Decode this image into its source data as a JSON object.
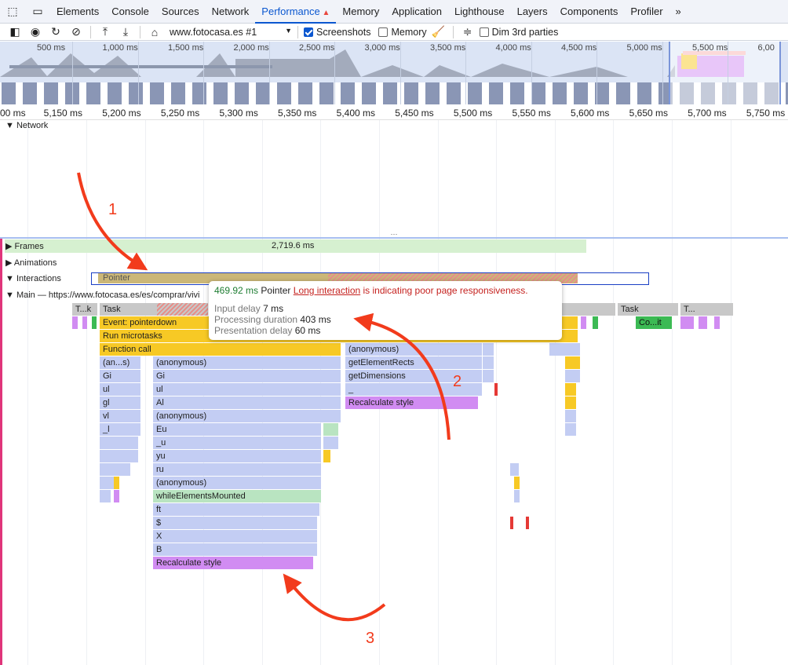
{
  "tabs": {
    "items": [
      "Elements",
      "Console",
      "Sources",
      "Network",
      "Performance",
      "Memory",
      "Application",
      "Lighthouse",
      "Layers",
      "Components",
      "Profiler"
    ],
    "active": "Performance",
    "more": "»"
  },
  "toolbar": {
    "recording": "www.fotocasa.es #1",
    "screenshots": "Screenshots",
    "screenshots_checked": true,
    "memory": "Memory",
    "memory_checked": false,
    "dim": "Dim 3rd parties",
    "dim_checked": false
  },
  "overview": {
    "ticks": [
      "500 ms",
      "1,000 ms",
      "1,500 ms",
      "2,000 ms",
      "2,500 ms",
      "3,000 ms",
      "3,500 ms",
      "4,000 ms",
      "4,500 ms",
      "5,000 ms",
      "5,500 ms",
      "6,00"
    ]
  },
  "ruler": {
    "ticks": [
      "00 ms",
      "5,150 ms",
      "5,200 ms",
      "5,250 ms",
      "5,300 ms",
      "5,350 ms",
      "5,400 ms",
      "5,450 ms",
      "5,500 ms",
      "5,550 ms",
      "5,600 ms",
      "5,650 ms",
      "5,700 ms",
      "5,750 ms"
    ]
  },
  "tracks": {
    "network": "Network",
    "frames": "Frames",
    "frames_value": "2,719.6 ms",
    "animations": "Animations",
    "interactions": "Interactions",
    "pointer": "Pointer",
    "main": "Main — https://www.fotocasa.es/es/comprar/vivi"
  },
  "flame": {
    "labels": [
      "T...k",
      "Task",
      "sk",
      "Task",
      "T...",
      "Event: pointerdown",
      "Co...it",
      "Run microtasks",
      "Function call",
      "(anonymous)",
      "(an...s)",
      "(anonymous)",
      "getElementRects",
      "Gi",
      "Gi",
      "getDimensions",
      "ul",
      "ul",
      "_",
      "gl",
      "Al",
      "Recalculate style",
      "vl",
      "(anonymous)",
      "_l",
      "Eu",
      "_u",
      "yu",
      "ru",
      "(anonymous)",
      "whileElementsMounted",
      "ft",
      "$",
      "X",
      "B",
      "Recalculate style"
    ]
  },
  "tooltip": {
    "duration": "469.92 ms",
    "type": "Pointer",
    "warning_link": "Long interaction",
    "warning_rest": " is indicating poor page responsiveness.",
    "input_delay_label": "Input delay",
    "input_delay": "7 ms",
    "processing_label": "Processing duration",
    "processing": "403 ms",
    "presentation_label": "Presentation delay",
    "presentation": "60 ms"
  },
  "annotations": [
    "1",
    "2",
    "3"
  ],
  "colors": {
    "accent": "#0b57d0",
    "task": "#c8c8c8",
    "event": "#f7c925",
    "script": "#c3cdf3",
    "style": "#d18cf2",
    "green": "#b9e4c1",
    "arrow": "#f23b1c",
    "frames": "#d6f0d0"
  }
}
